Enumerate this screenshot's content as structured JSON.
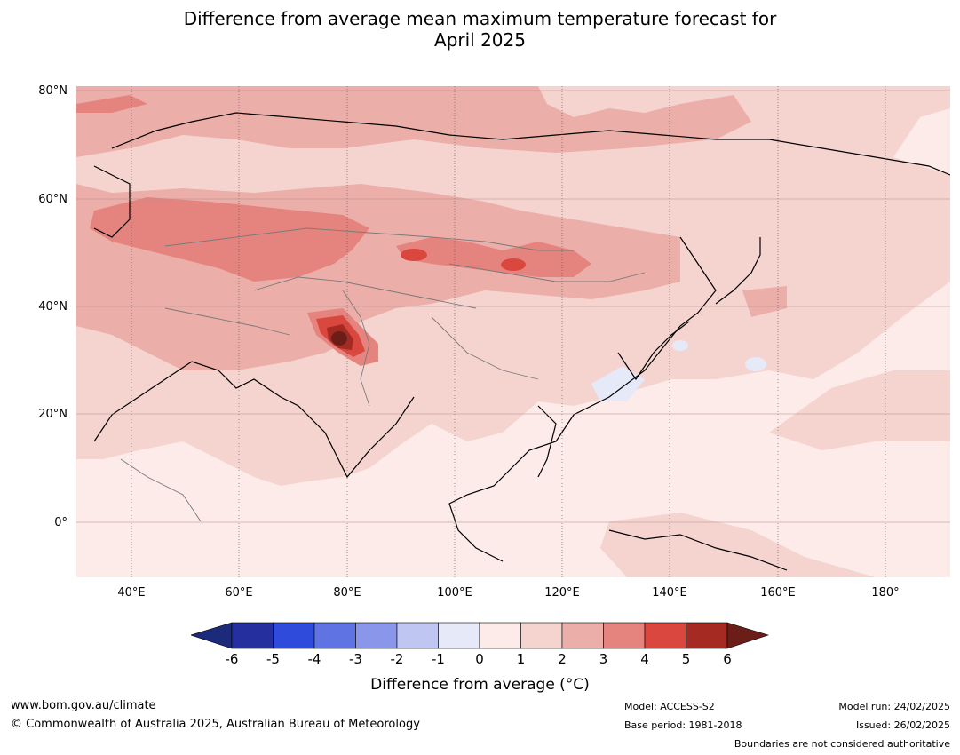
{
  "title": {
    "line1": "Difference from average mean maximum temperature forecast for",
    "line2": "April 2025"
  },
  "map": {
    "lat_ticks": [
      "80°N",
      "60°N",
      "40°N",
      "20°N",
      "0°"
    ],
    "lon_ticks": [
      "40°E",
      "60°E",
      "80°E",
      "100°E",
      "120°E",
      "140°E",
      "160°E",
      "180°"
    ]
  },
  "colorbar": {
    "ticks": [
      "-6",
      "-5",
      "-4",
      "-3",
      "-2",
      "-1",
      "0",
      "1",
      "2",
      "3",
      "4",
      "5",
      "6"
    ],
    "colors": [
      "#262f9e",
      "#2f4bdc",
      "#5f74e2",
      "#8a96ea",
      "#bfc6f2",
      "#e6e9f8",
      "#fcebe8",
      "#f5d4d0",
      "#ecaea9",
      "#e5847e",
      "#d9473e",
      "#a52a22"
    ],
    "under_color": "#1b2a7a",
    "over_color": "#6b1d18",
    "label": "Difference from average (°C)"
  },
  "footer": {
    "website": "www.bom.gov.au/climate",
    "copyright": "© Commonwealth of Australia 2025, Australian Bureau of Meteorology",
    "model": "Model: ACCESS-S2",
    "base_period": "Base period: 1981-2018",
    "model_run": "Model run: 24/02/2025",
    "issued": "Issued: 26/02/2025",
    "disclaimer": "Boundaries are not considered authoritative"
  }
}
